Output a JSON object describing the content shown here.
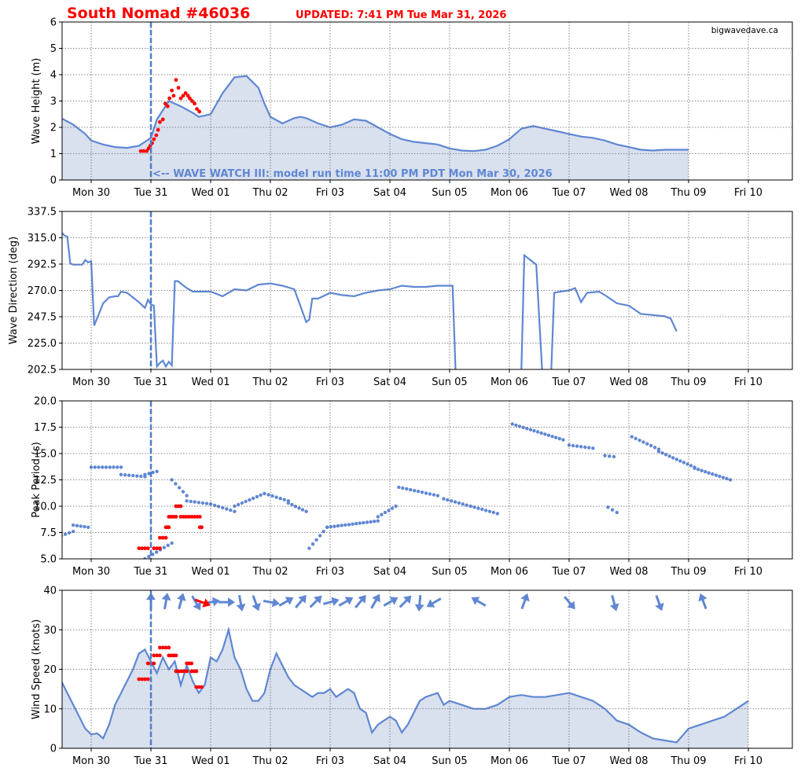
{
  "header": {
    "title": "South Nomad #46036",
    "updated": "UPDATED: 7:41 PM  Tue Mar 31, 2026"
  },
  "colors": {
    "model_line": "#5f87d3",
    "model_fill": "#d9e0ee",
    "observed": "#ff0000",
    "now_line": "#4f7ec9",
    "grid": "#666666"
  },
  "chart_data": [
    {
      "id": "wave-height",
      "type": "area",
      "ylabel": "Wave Height (m)",
      "ylim": [
        0,
        6
      ],
      "yticks": [
        "0",
        "1",
        "2",
        "3",
        "4",
        "5",
        "6"
      ],
      "watermark": "bigwavedave.ca",
      "annotation": "<-- WAVE WATCH III: model run time 11:00 PM PDT  Mon Mar 30, 2026",
      "model": {
        "x": [
          -0.5,
          -0.3,
          -0.1,
          0.0,
          0.2,
          0.4,
          0.6,
          0.8,
          1.0,
          1.1,
          1.3,
          1.5,
          1.7,
          1.8,
          2.0,
          2.2,
          2.4,
          2.6,
          2.8,
          2.9,
          3.0,
          3.2,
          3.4,
          3.5,
          3.6,
          3.8,
          4.0,
          4.2,
          4.4,
          4.6,
          4.8,
          5.0,
          5.2,
          5.4,
          5.6,
          5.8,
          6.0,
          6.2,
          6.4,
          6.6,
          6.8,
          7.0,
          7.2,
          7.4,
          7.6,
          7.8,
          8.0,
          8.2,
          8.4,
          8.6,
          8.8,
          9.0,
          9.2,
          9.4,
          9.6,
          9.8,
          10.0
        ],
        "y": [
          2.35,
          2.1,
          1.75,
          1.5,
          1.35,
          1.25,
          1.22,
          1.3,
          1.6,
          2.3,
          3.0,
          2.8,
          2.55,
          2.4,
          2.5,
          3.3,
          3.9,
          3.95,
          3.5,
          2.9,
          2.4,
          2.15,
          2.35,
          2.4,
          2.35,
          2.15,
          2.0,
          2.1,
          2.3,
          2.25,
          2.0,
          1.75,
          1.55,
          1.45,
          1.4,
          1.35,
          1.2,
          1.12,
          1.1,
          1.15,
          1.3,
          1.55,
          1.95,
          2.05,
          1.95,
          1.85,
          1.75,
          1.65,
          1.6,
          1.5,
          1.35,
          1.25,
          1.15,
          1.12,
          1.15,
          1.15,
          1.15
        ]
      },
      "observed": {
        "x": [
          0.83,
          0.88,
          0.93,
          0.96,
          0.99,
          1.02,
          1.05,
          1.09,
          1.12,
          1.15,
          1.2,
          1.24,
          1.28,
          1.31,
          1.35,
          1.38,
          1.42,
          1.46,
          1.5,
          1.54,
          1.58,
          1.62,
          1.65,
          1.69,
          1.73,
          1.77,
          1.81
        ],
        "y": [
          1.1,
          1.1,
          1.1,
          1.2,
          1.3,
          1.4,
          1.55,
          1.7,
          1.9,
          2.2,
          2.3,
          2.9,
          2.8,
          3.1,
          3.4,
          3.2,
          3.8,
          3.5,
          3.1,
          3.2,
          3.3,
          3.2,
          3.1,
          3.0,
          2.9,
          2.7,
          2.6
        ]
      }
    },
    {
      "id": "wave-direction",
      "type": "line",
      "ylabel": "Wave Direction (deg)",
      "ylim": [
        202.5,
        337.5
      ],
      "yticks": [
        "202.5",
        "225.0",
        "247.5",
        "270.0",
        "292.5",
        "315.0",
        "337.5"
      ],
      "model": {
        "x": [
          -0.5,
          -0.45,
          -0.4,
          -0.35,
          -0.3,
          -0.2,
          -0.15,
          -0.1,
          -0.05,
          0.0,
          0.05,
          0.2,
          0.3,
          0.4,
          0.45,
          0.5,
          0.6,
          0.8,
          0.9,
          0.95,
          1.0,
          1.05,
          1.1,
          1.15,
          1.2,
          1.25,
          1.3,
          1.35,
          1.4,
          1.45,
          1.5,
          1.6,
          1.7,
          1.9,
          2.0,
          2.2,
          2.4,
          2.6,
          2.8,
          3.0,
          3.2,
          3.4,
          3.6,
          3.65,
          3.7,
          3.8,
          4.0,
          4.2,
          4.4,
          4.6,
          4.8,
          5.0,
          5.2,
          5.4,
          5.6,
          5.8,
          6.0,
          6.05,
          6.1
        ],
        "y": [
          320,
          317,
          316,
          293,
          292,
          292,
          292,
          296,
          294,
          295,
          240,
          259,
          264,
          265,
          265,
          269,
          268,
          260,
          255,
          262,
          258,
          257,
          205,
          208,
          210,
          205,
          209,
          206,
          278,
          278,
          276,
          272,
          269,
          269,
          269,
          265,
          271,
          270,
          275,
          276,
          274,
          271,
          243,
          245,
          263,
          263,
          268,
          266,
          265,
          268,
          270,
          271,
          274,
          273,
          273,
          274,
          274,
          274,
          200
        ]
      },
      "model_seg2": {
        "x": [
          7.2,
          7.25,
          7.45,
          7.55,
          7.65,
          7.7,
          7.75,
          7.85,
          8.0,
          8.1,
          8.2,
          8.3,
          8.5,
          8.6,
          8.8,
          9.0,
          9.2,
          9.4,
          9.6,
          9.7,
          9.8
        ],
        "y": [
          200,
          300,
          292,
          200,
          200,
          200,
          268,
          269,
          270,
          272,
          260,
          268,
          269,
          266,
          259,
          257,
          250,
          249,
          248,
          246,
          235
        ]
      }
    },
    {
      "id": "peak-period",
      "type": "scatter",
      "ylabel": "Peak Period (s)",
      "ylim": [
        5.0,
        20.0
      ],
      "yticks": [
        "5.0",
        "7.5",
        "10.0",
        "12.5",
        "15.0",
        "17.5",
        "20.0"
      ],
      "model_runs": [
        {
          "x0": -0.5,
          "x1": -0.3,
          "y0": 7.2,
          "y1": 7.6
        },
        {
          "x0": -0.3,
          "x1": -0.05,
          "y0": 8.2,
          "y1": 8.0
        },
        {
          "x0": 0.0,
          "x1": 0.5,
          "y0": 13.7,
          "y1": 13.7
        },
        {
          "x0": 0.5,
          "x1": 0.9,
          "y0": 13.0,
          "y1": 12.8
        },
        {
          "x0": 0.9,
          "x1": 1.1,
          "y0": 13.0,
          "y1": 13.3
        },
        {
          "x0": 0.9,
          "x1": 1.35,
          "y0": 5.0,
          "y1": 6.5
        },
        {
          "x0": 1.35,
          "x1": 1.6,
          "y0": 12.5,
          "y1": 11.0
        },
        {
          "x0": 1.6,
          "x1": 2.0,
          "y0": 10.5,
          "y1": 10.2
        },
        {
          "x0": 2.0,
          "x1": 2.4,
          "y0": 10.2,
          "y1": 9.5
        },
        {
          "x0": 2.4,
          "x1": 2.9,
          "y0": 10.0,
          "y1": 11.2
        },
        {
          "x0": 2.9,
          "x1": 3.3,
          "y0": 11.2,
          "y1": 10.5
        },
        {
          "x0": 3.3,
          "x1": 3.6,
          "y0": 10.3,
          "y1": 9.5
        },
        {
          "x0": 3.65,
          "x1": 3.95,
          "y0": 6.0,
          "y1": 8.0
        },
        {
          "x0": 3.95,
          "x1": 4.8,
          "y0": 8.0,
          "y1": 8.6
        },
        {
          "x0": 4.8,
          "x1": 5.1,
          "y0": 9.0,
          "y1": 10.0
        },
        {
          "x0": 5.15,
          "x1": 5.8,
          "y0": 11.8,
          "y1": 11.0
        },
        {
          "x0": 5.9,
          "x1": 6.8,
          "y0": 10.7,
          "y1": 9.3
        },
        {
          "x0": 7.05,
          "x1": 7.9,
          "y0": 17.8,
          "y1": 16.3
        },
        {
          "x0": 8.0,
          "x1": 8.4,
          "y0": 15.8,
          "y1": 15.5
        },
        {
          "x0": 8.6,
          "x1": 8.75,
          "y0": 14.8,
          "y1": 14.7
        },
        {
          "x0": 8.65,
          "x1": 8.8,
          "y0": 9.9,
          "y1": 9.4
        },
        {
          "x0": 9.05,
          "x1": 9.5,
          "y0": 16.6,
          "y1": 15.4
        },
        {
          "x0": 9.5,
          "x1": 10.1,
          "y0": 15.2,
          "y1": 13.7
        },
        {
          "x0": 10.1,
          "x1": 10.7,
          "y0": 13.6,
          "y1": 12.5
        }
      ],
      "observed_runs": [
        {
          "x0": 0.8,
          "x1": 0.95,
          "y": 6
        },
        {
          "x0": 1.05,
          "x1": 1.15,
          "y": 6
        },
        {
          "x0": 1.15,
          "x1": 1.25,
          "y": 7
        },
        {
          "x0": 1.25,
          "x1": 1.3,
          "y": 8
        },
        {
          "x0": 1.3,
          "x1": 1.42,
          "y": 9
        },
        {
          "x0": 1.42,
          "x1": 1.5,
          "y": 10
        },
        {
          "x0": 1.5,
          "x1": 1.82,
          "y": 9
        },
        {
          "x0": 1.82,
          "x1": 1.85,
          "y": 8
        }
      ]
    },
    {
      "id": "wind-speed",
      "type": "area",
      "ylabel": "Wind Speed (knots)",
      "ylim": [
        0,
        40
      ],
      "yticks": [
        "0",
        "10",
        "20",
        "30",
        "40"
      ],
      "model": {
        "x": [
          -0.5,
          -0.4,
          -0.3,
          -0.2,
          -0.1,
          0.0,
          0.1,
          0.2,
          0.3,
          0.4,
          0.5,
          0.6,
          0.7,
          0.8,
          0.9,
          1.0,
          1.1,
          1.2,
          1.3,
          1.4,
          1.5,
          1.6,
          1.7,
          1.8,
          1.9,
          2.0,
          2.1,
          2.2,
          2.3,
          2.4,
          2.5,
          2.6,
          2.7,
          2.8,
          2.9,
          3.0,
          3.1,
          3.2,
          3.3,
          3.4,
          3.5,
          3.6,
          3.7,
          3.8,
          3.9,
          4.0,
          4.1,
          4.2,
          4.3,
          4.4,
          4.5,
          4.6,
          4.7,
          4.8,
          4.9,
          5.0,
          5.1,
          5.2,
          5.3,
          5.4,
          5.5,
          5.6,
          5.7,
          5.8,
          5.9,
          6.0,
          6.2,
          6.4,
          6.6,
          6.8,
          7.0,
          7.2,
          7.4,
          7.6,
          7.8,
          8.0,
          8.2,
          8.4,
          8.6,
          8.8,
          9.0,
          9.2,
          9.4,
          9.6,
          9.8,
          10.0,
          10.2,
          10.4,
          10.6,
          10.8,
          11.0
        ],
        "y": [
          17,
          14,
          11,
          8,
          5,
          3.5,
          3.8,
          2.5,
          6,
          11,
          14,
          17,
          20,
          24,
          25,
          22,
          19,
          23,
          20,
          22,
          16,
          21,
          17,
          14,
          16,
          23,
          22,
          25,
          30,
          23,
          20,
          15,
          12,
          12,
          14,
          20,
          24,
          21,
          18,
          16,
          15,
          14,
          13,
          14,
          14,
          15,
          13,
          14,
          15,
          14,
          10,
          9,
          4,
          6,
          7,
          8,
          7,
          4,
          6,
          9,
          12,
          13,
          13.5,
          14,
          11,
          12,
          11,
          10,
          10,
          11,
          13,
          13.5,
          13,
          13,
          13.5,
          14,
          13,
          12,
          10,
          7,
          6,
          4,
          2.5,
          2,
          1.5,
          5,
          6,
          7,
          8,
          10,
          12
        ]
      },
      "observed_runs": [
        {
          "x0": 0.8,
          "x1": 0.95,
          "y": 17.5
        },
        {
          "x0": 0.95,
          "x1": 1.05,
          "y": 21.5
        },
        {
          "x0": 1.05,
          "x1": 1.15,
          "y": 23.5
        },
        {
          "x0": 1.15,
          "x1": 1.3,
          "y": 25.5
        },
        {
          "x0": 1.3,
          "x1": 1.42,
          "y": 23.5
        },
        {
          "x0": 1.42,
          "x1": 1.6,
          "y": 19.5
        },
        {
          "x0": 1.6,
          "x1": 1.68,
          "y": 21.5
        },
        {
          "x0": 1.68,
          "x1": 1.76,
          "y": 19.5
        },
        {
          "x0": 1.76,
          "x1": 1.85,
          "y": 15.5
        }
      ],
      "wind_arrows_model": [
        {
          "x": 1.0,
          "dir": 0
        },
        {
          "x": 1.25,
          "dir": 10
        },
        {
          "x": 1.5,
          "dir": 15
        },
        {
          "x": 1.75,
          "dir": 150
        },
        {
          "x": 2.0,
          "dir": 80
        },
        {
          "x": 2.25,
          "dir": 90
        },
        {
          "x": 2.5,
          "dir": 170
        },
        {
          "x": 2.75,
          "dir": 160
        },
        {
          "x": 3.0,
          "dir": 100
        },
        {
          "x": 3.25,
          "dir": 60
        },
        {
          "x": 3.5,
          "dir": 40
        },
        {
          "x": 3.75,
          "dir": 45
        },
        {
          "x": 4.0,
          "dir": 75
        },
        {
          "x": 4.25,
          "dir": 60
        },
        {
          "x": 4.5,
          "dir": 40
        },
        {
          "x": 4.75,
          "dir": 30
        },
        {
          "x": 5.0,
          "dir": 60
        },
        {
          "x": 5.25,
          "dir": 45
        },
        {
          "x": 5.5,
          "dir": 185
        },
        {
          "x": 5.75,
          "dir": 240
        },
        {
          "x": 6.5,
          "dir": 300
        },
        {
          "x": 7.25,
          "dir": 20
        },
        {
          "x": 8.0,
          "dir": 140
        },
        {
          "x": 8.75,
          "dir": 165
        },
        {
          "x": 9.5,
          "dir": 160
        },
        {
          "x": 10.25,
          "dir": 340
        }
      ],
      "wind_arrows_observed": [
        {
          "x": 1.85,
          "dir": 110
        }
      ]
    }
  ],
  "x_axis": {
    "ticks": [
      "Mon 30",
      "Tue 31",
      "Wed 01",
      "Thu 02",
      "Fri 03",
      "Sat 04",
      "Sun 05",
      "Mon 06",
      "Tue 07",
      "Wed 08",
      "Thu 09",
      "Fri 10"
    ],
    "range_days": [
      -0.5,
      11.8
    ],
    "now_day": 1.0
  }
}
